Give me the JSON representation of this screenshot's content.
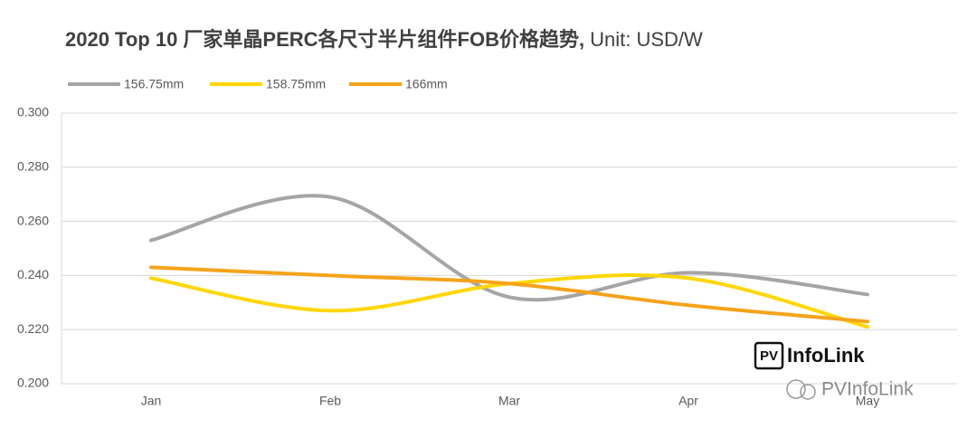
{
  "chart_data": {
    "type": "line",
    "title": "2020 Top 10 厂家单晶PERC各尺寸半片组件FOB价格趋势,",
    "subtitle": "Unit: USD/W",
    "categories": [
      "Jan",
      "Feb",
      "Mar",
      "Apr",
      "May"
    ],
    "series": [
      {
        "name": "156.75mm",
        "color": "#a5a5a5",
        "values": [
          0.253,
          0.269,
          0.232,
          0.241,
          0.233
        ]
      },
      {
        "name": "158.75mm",
        "color": "#ffd700",
        "values": [
          0.239,
          0.227,
          0.237,
          0.239,
          0.221
        ]
      },
      {
        "name": "166mm",
        "color": "#f5a31a",
        "values": [
          0.243,
          0.24,
          0.237,
          0.229,
          0.223
        ]
      }
    ],
    "ylim": [
      0.2,
      0.3
    ],
    "yticks": [
      {
        "value": 0.2,
        "label": "0.200"
      },
      {
        "value": 0.22,
        "label": "0.220"
      },
      {
        "value": 0.24,
        "label": "0.240"
      },
      {
        "value": 0.26,
        "label": "0.260"
      },
      {
        "value": 0.28,
        "label": "0.280"
      },
      {
        "value": 0.3,
        "label": "0.300"
      }
    ],
    "grid": true,
    "smooth": true,
    "legend": "top-left"
  },
  "logo": {
    "badge": "PV",
    "text": "InfoLink"
  },
  "watermark": "PVInfoLink"
}
